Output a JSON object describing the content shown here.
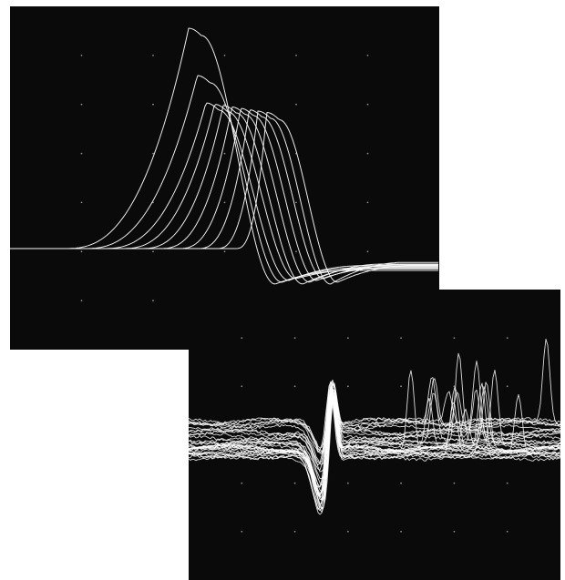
{
  "figure": {
    "description_free": true,
    "background_color": "#ffffff",
    "screen_color": "#0a0a0a",
    "trace_color": "#ffffff",
    "grid_dot_color": "#8a8a8a",
    "grid_on": true,
    "panels": [
      {
        "id": "top",
        "trace_count": 10,
        "grid_columns": 5,
        "grid_rows": 6
      },
      {
        "id": "bottom",
        "trace_count": 30,
        "grid_columns": 6,
        "grid_rows": 5
      }
    ]
  }
}
